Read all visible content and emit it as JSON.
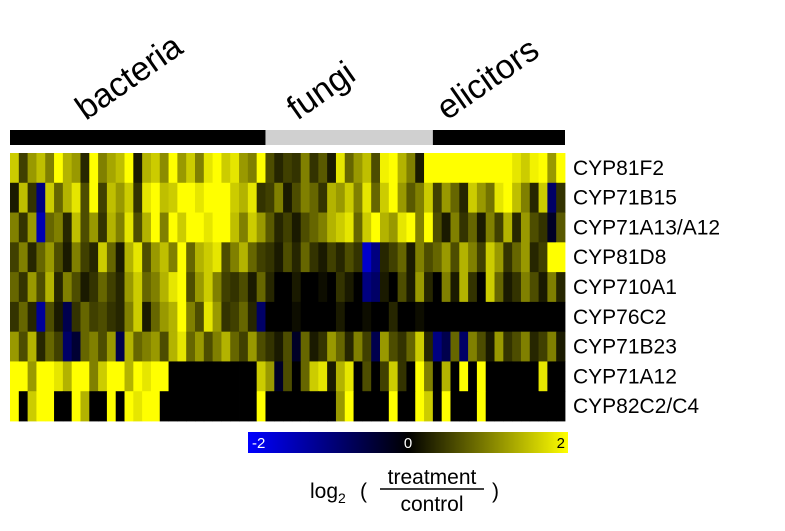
{
  "chart_data": {
    "type": "heatmap",
    "groups": [
      {
        "label": "bacteria",
        "columns": 29,
        "bar_color": "#000000"
      },
      {
        "label": "fungi",
        "columns": 19,
        "bar_color": "#d0d0d0"
      },
      {
        "label": "elicitors",
        "columns": 15,
        "bar_color": "#000000"
      }
    ],
    "rows": [
      "CYP81F2",
      "CYP71B15",
      "CYP71A13/A12",
      "CYP81D8",
      "CYP710A1",
      "CYP76C2",
      "CYP71B23",
      "CYP71A12",
      "CYP82C2/C4"
    ],
    "values": [
      [
        1.6,
        0.5,
        1.2,
        1.5,
        1.0,
        2.0,
        1.4,
        1.2,
        0.3,
        2.0,
        1.0,
        1.3,
        1.5,
        2.0,
        0.2,
        1.4,
        1.6,
        1.1,
        2.0,
        1.2,
        1.6,
        1.0,
        1.8,
        2.0,
        1.6,
        1.8,
        1.2,
        1.0,
        2.0,
        0.6,
        0.3,
        0.5,
        0.4,
        1.0,
        0.4,
        0.7,
        0.2,
        1.8,
        0.8,
        1.2,
        1.5,
        0.6,
        1.9,
        2.0,
        1.4,
        1.0,
        0.2,
        2.0,
        2.0,
        2.0,
        2.0,
        2.0,
        2.0,
        2.0,
        2.0,
        2.0,
        2.0,
        1.8,
        1.6,
        1.9,
        2.0,
        1.2,
        2.0
      ],
      [
        0.2,
        1.5,
        0.4,
        -1.0,
        1.6,
        0.8,
        1.4,
        1.8,
        0.6,
        2.0,
        0.5,
        1.5,
        1.2,
        1.6,
        0.4,
        1.8,
        2.0,
        1.5,
        1.6,
        2.0,
        2.0,
        1.8,
        2.0,
        2.0,
        2.0,
        1.6,
        1.4,
        1.8,
        0.4,
        0.5,
        1.0,
        0.2,
        0.6,
        1.0,
        0.8,
        0.4,
        1.4,
        1.2,
        1.6,
        1.0,
        1.8,
        0.8,
        1.6,
        2.0,
        1.2,
        0.7,
        1.0,
        1.6,
        0.5,
        1.2,
        0.8,
        0.3,
        1.6,
        1.2,
        0.9,
        1.8,
        2.0,
        1.5,
        1.0,
        0.3,
        1.6,
        -0.8,
        0.4
      ],
      [
        1.0,
        0.4,
        1.2,
        -1.4,
        0.8,
        1.0,
        0.3,
        1.5,
        0.6,
        1.2,
        0.4,
        1.4,
        1.0,
        1.8,
        0.6,
        1.4,
        2.0,
        1.0,
        2.0,
        1.6,
        2.0,
        2.0,
        1.8,
        2.0,
        2.0,
        1.5,
        1.0,
        1.6,
        1.2,
        0.7,
        0.3,
        0.5,
        0.2,
        0.6,
        0.8,
        1.0,
        1.4,
        1.6,
        1.8,
        0.8,
        1.6,
        2.0,
        1.4,
        1.2,
        1.8,
        2.0,
        1.0,
        2.0,
        0.6,
        0.2,
        1.0,
        0.4,
        0.8,
        0.2,
        1.0,
        0.5,
        1.4,
        0.3,
        1.2,
        0.6,
        0.4,
        -0.3,
        0.7
      ],
      [
        0.5,
        1.0,
        0.3,
        0.8,
        1.2,
        0.6,
        0.2,
        1.0,
        0.5,
        0.3,
        1.6,
        0.8,
        0.2,
        1.4,
        1.8,
        0.6,
        1.2,
        1.5,
        1.0,
        2.0,
        0.8,
        1.4,
        1.6,
        1.8,
        0.6,
        1.0,
        1.4,
        0.8,
        0.5,
        0.4,
        0.2,
        0.6,
        0.3,
        0.8,
        0.4,
        0.2,
        0.5,
        0.3,
        0.6,
        0.4,
        -1.6,
        -1.0,
        0.3,
        0.5,
        0.8,
        0.2,
        1.0,
        0.6,
        0.8,
        1.2,
        0.6,
        1.4,
        1.0,
        0.5,
        1.6,
        1.2,
        0.4,
        0.8,
        1.2,
        0.3,
        0.5,
        2.0,
        2.0
      ],
      [
        0.8,
        0.4,
        1.2,
        0.6,
        1.4,
        0.3,
        1.0,
        0.6,
        0.2,
        0.4,
        0.8,
        0.5,
        0.3,
        1.2,
        1.6,
        0.8,
        1.0,
        1.4,
        1.8,
        2.0,
        0.6,
        1.2,
        1.6,
        1.0,
        0.5,
        0.4,
        0.6,
        0.2,
        0.8,
        0.3,
        0.0,
        0.0,
        0.2,
        0.0,
        0.0,
        0.1,
        0.0,
        0.4,
        0.2,
        0.0,
        -1.0,
        -0.8,
        0.2,
        0.0,
        0.6,
        0.2,
        1.2,
        0.3,
        0.0,
        1.0,
        0.2,
        1.4,
        0.4,
        0.0,
        1.6,
        0.8,
        0.2,
        0.4,
        1.0,
        0.6,
        0.2,
        1.0,
        0.3
      ],
      [
        0.4,
        0.8,
        0.3,
        -1.2,
        0.6,
        0.2,
        -0.6,
        0.4,
        0.8,
        0.5,
        0.6,
        0.4,
        0.3,
        1.0,
        1.6,
        0.2,
        0.8,
        1.2,
        1.4,
        2.0,
        1.0,
        0.6,
        1.8,
        1.2,
        0.4,
        0.5,
        0.8,
        0.3,
        -0.8,
        0.0,
        0.0,
        0.0,
        0.1,
        0.0,
        0.0,
        0.0,
        0.0,
        0.2,
        0.0,
        0.0,
        0.1,
        0.0,
        0.0,
        0.3,
        0.0,
        0.0,
        0.1,
        0.0,
        0.0,
        0.0,
        0.0,
        0.0,
        0.0,
        0.0,
        0.0,
        0.0,
        0.0,
        0.0,
        0.0,
        0.0,
        0.0,
        0.0,
        0.0
      ],
      [
        1.2,
        0.6,
        1.4,
        0.3,
        0.8,
        0.5,
        -0.8,
        -0.4,
        0.8,
        1.0,
        0.6,
        1.2,
        -0.6,
        1.4,
        0.8,
        1.0,
        1.2,
        0.6,
        1.4,
        1.8,
        0.8,
        1.2,
        0.6,
        1.0,
        1.4,
        0.8,
        0.5,
        1.2,
        0.6,
        0.4,
        0.2,
        0.6,
        -0.3,
        0.8,
        0.2,
        0.4,
        1.2,
        0.8,
        0.3,
        1.0,
        0.5,
        -0.6,
        1.2,
        0.6,
        0.4,
        0.8,
        1.6,
        0.3,
        -1.0,
        -0.6,
        0.8,
        -0.8,
        1.0,
        0.6,
        0.2,
        1.2,
        0.4,
        0.6,
        1.0,
        0.3,
        0.5,
        1.0,
        0.2
      ],
      [
        2.0,
        2.0,
        1.2,
        2.0,
        2.0,
        1.8,
        1.4,
        2.0,
        2.0,
        1.0,
        1.6,
        2.0,
        2.0,
        1.4,
        2.0,
        1.8,
        2.0,
        2.0,
        0.0,
        0.0,
        0.0,
        0.0,
        0.0,
        0.0,
        0.0,
        0.0,
        0.0,
        0.0,
        1.6,
        1.2,
        -0.3,
        0.6,
        0.0,
        0.8,
        1.6,
        1.8,
        0.2,
        1.4,
        1.8,
        0.0,
        0.6,
        0.0,
        0.5,
        1.6,
        0.4,
        0.0,
        2.0,
        1.0,
        0.0,
        1.4,
        0.0,
        2.0,
        0.0,
        2.0,
        0.0,
        0.0,
        0.0,
        0.0,
        0.0,
        0.0,
        1.8,
        0.0,
        0.0
      ],
      [
        2.0,
        0.0,
        1.6,
        2.0,
        2.0,
        0.0,
        0.0,
        2.0,
        1.4,
        0.0,
        0.0,
        2.0,
        0.0,
        2.0,
        1.8,
        2.0,
        2.0,
        0.0,
        0.0,
        0.0,
        0.0,
        0.0,
        0.0,
        0.0,
        0.0,
        0.0,
        0.0,
        0.0,
        2.0,
        0.0,
        0.0,
        0.0,
        0.0,
        0.0,
        0.0,
        0.0,
        0.0,
        1.2,
        2.0,
        0.0,
        0.0,
        0.0,
        0.0,
        2.0,
        0.0,
        0.0,
        2.0,
        1.6,
        0.0,
        2.0,
        0.0,
        0.0,
        0.0,
        2.0,
        0.0,
        0.0,
        0.0,
        0.0,
        0.0,
        0.0,
        0.0,
        0.0,
        0.0
      ]
    ],
    "colorbar": {
      "min": -2,
      "max": 2,
      "ticks": [
        -2,
        0,
        2
      ],
      "stops": [
        {
          "value": -2,
          "color": "#0000ff"
        },
        {
          "value": 0,
          "color": "#000000"
        },
        {
          "value": 2,
          "color": "#ffff00"
        }
      ]
    },
    "label": {
      "prefix": "log",
      "subscript": "2",
      "open": "(",
      "numerator": "treatment",
      "denominator": "control",
      "close": ")"
    }
  }
}
